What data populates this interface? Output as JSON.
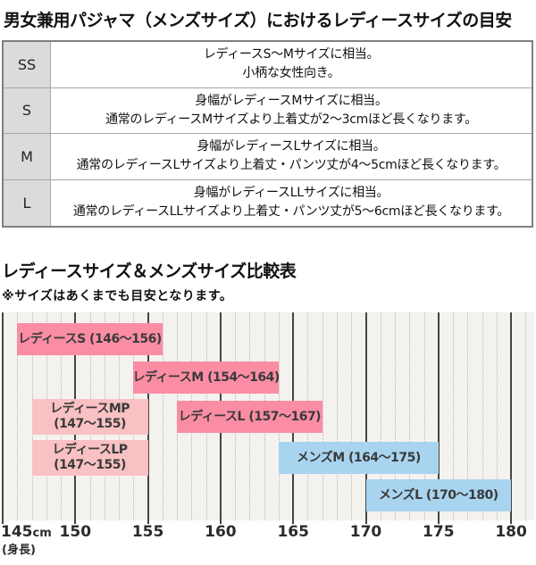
{
  "page": {
    "title1": "男女兼用パジャマ（メンズサイズ）におけるレディースサイズの目安",
    "title2": "レディースサイズ＆メンズサイズ比較表",
    "note": "※サイズはあくまでも目安となります。"
  },
  "size_table": {
    "rows": [
      {
        "size": "SS",
        "lines": [
          "レディースS〜Mサイズに相当。",
          "小柄な女性向き。"
        ]
      },
      {
        "size": "S",
        "lines": [
          "身幅がレディースMサイズに相当。",
          "通常のレディースMサイズより上着丈が2〜3cmほど長くなります。"
        ]
      },
      {
        "size": "M",
        "lines": [
          "身幅がレディースLサイズに相当。",
          "通常のレディースLサイズより上着丈・パンツ丈が4〜5cmほど長くなります。"
        ]
      },
      {
        "size": "L",
        "lines": [
          "身幅がレディースLLサイズに相当。",
          "通常のレディースLLサイズより上着丈・パンツ丈が5〜6cmほど長くなります。"
        ]
      }
    ]
  },
  "chart_data": {
    "type": "bar",
    "orientation": "horizontal-range",
    "title": "レディースサイズ＆メンズサイズ比較表",
    "note": "※サイズはあくまでも目安となります。",
    "xlabel": "(身長)",
    "x_unit": "cm",
    "xlim": [
      145,
      181
    ],
    "major_ticks": [
      145,
      150,
      155,
      160,
      165,
      170,
      175,
      180
    ],
    "minor_step": 1,
    "grid": "on",
    "colors": {
      "ladies": "#fa8da4",
      "ladies_petite": "#f9c1c4",
      "mens": "#a8d4f0"
    },
    "bars": [
      {
        "label": "レディースS",
        "range": "(146〜156)",
        "start": 146,
        "end": 156,
        "row": 0,
        "series": "ladies",
        "two_line": false
      },
      {
        "label": "レディースM",
        "range": "(154〜164)",
        "start": 154,
        "end": 164,
        "row": 1,
        "series": "ladies",
        "two_line": false
      },
      {
        "label": "レディースMP",
        "range": "(147〜155)",
        "start": 147,
        "end": 155,
        "row": 2,
        "series": "ladies_petite",
        "two_line": true
      },
      {
        "label": "レディースL",
        "range": "(157〜167)",
        "start": 157,
        "end": 167,
        "row": 2,
        "series": "ladies",
        "two_line": false
      },
      {
        "label": "レディースLP",
        "range": "(147〜155)",
        "start": 147,
        "end": 155,
        "row": 3,
        "series": "ladies_petite",
        "two_line": true
      },
      {
        "label": "メンズM",
        "range": "(164〜175)",
        "start": 164,
        "end": 175,
        "row": 3,
        "series": "mens",
        "two_line": false
      },
      {
        "label": "メンズL",
        "range": "(170〜180)",
        "start": 170,
        "end": 180,
        "row": 4,
        "series": "mens",
        "two_line": false
      }
    ]
  }
}
